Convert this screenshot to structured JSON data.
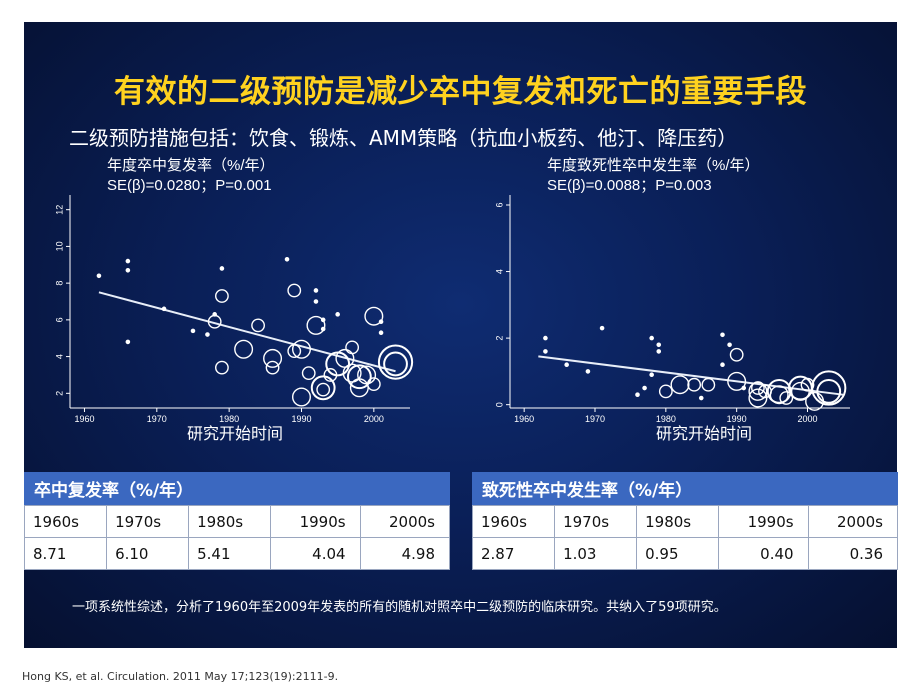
{
  "slide": {
    "title": "有效的二级预防是减少卒中复发和死亡的重要手段",
    "subtitle": "二级预防措施包括：饮食、锻炼、AMM策略（抗血小板药、他汀、降压药）",
    "note": "一项系统性综述，分析了1960年至2009年发表的所有的随机对照卒中二级预防的临床研究。共纳入了59项研究。",
    "citation": "Hong KS, et al. Circulation. 2011 May 17;123(19):2111-9."
  },
  "colors": {
    "title": "#ffd21f",
    "background": "#0a1f57",
    "table_header": "#3b68c0",
    "marker": "#ffffff"
  },
  "chart_data": [
    {
      "type": "scatter",
      "title": "年度卒中复发率（%/年）",
      "subtitle": "SE(β)=0.0280；P=0.001",
      "xlabel": "研究开始时间",
      "xlim": [
        1958,
        2005
      ],
      "ylim": [
        1.2,
        12.8
      ],
      "xticks": [
        "1960",
        "1970",
        "1980",
        "1990",
        "2000"
      ],
      "yticks": [
        "2",
        "4",
        "6",
        "8",
        "10",
        "12"
      ],
      "fit_line": {
        "x": [
          1962,
          2003
        ],
        "y": [
          7.5,
          3.2
        ]
      },
      "points": [
        {
          "x": 1962,
          "y": 8.4,
          "w": 1
        },
        {
          "x": 1966,
          "y": 9.2,
          "w": 1
        },
        {
          "x": 1966,
          "y": 8.7,
          "w": 1
        },
        {
          "x": 1966,
          "y": 4.8,
          "w": 1
        },
        {
          "x": 1971,
          "y": 6.6,
          "w": 1
        },
        {
          "x": 1975,
          "y": 5.4,
          "w": 1
        },
        {
          "x": 1977,
          "y": 5.2,
          "w": 1
        },
        {
          "x": 1978,
          "y": 6.3,
          "w": 1
        },
        {
          "x": 1978,
          "y": 5.9,
          "w": 2
        },
        {
          "x": 1979,
          "y": 8.8,
          "w": 1
        },
        {
          "x": 1979,
          "y": 7.3,
          "w": 2
        },
        {
          "x": 1979,
          "y": 3.4,
          "w": 2
        },
        {
          "x": 1982,
          "y": 4.4,
          "w": 3
        },
        {
          "x": 1984,
          "y": 5.7,
          "w": 2
        },
        {
          "x": 1986,
          "y": 3.9,
          "w": 3
        },
        {
          "x": 1986,
          "y": 3.4,
          "w": 2
        },
        {
          "x": 1988,
          "y": 9.3,
          "w": 1
        },
        {
          "x": 1989,
          "y": 7.6,
          "w": 2
        },
        {
          "x": 1989,
          "y": 4.3,
          "w": 2
        },
        {
          "x": 1990,
          "y": 4.4,
          "w": 3
        },
        {
          "x": 1991,
          "y": 3.1,
          "w": 2
        },
        {
          "x": 1990,
          "y": 1.8,
          "w": 3
        },
        {
          "x": 1992,
          "y": 7.6,
          "w": 1
        },
        {
          "x": 1992,
          "y": 7.0,
          "w": 1
        },
        {
          "x": 1992,
          "y": 5.7,
          "w": 3
        },
        {
          "x": 1993,
          "y": 5.5,
          "w": 1
        },
        {
          "x": 1993,
          "y": 6.0,
          "w": 1
        },
        {
          "x": 1994,
          "y": 3.0,
          "w": 2
        },
        {
          "x": 1993,
          "y": 2.3,
          "w": 4
        },
        {
          "x": 1993,
          "y": 2.2,
          "w": 2
        },
        {
          "x": 1995,
          "y": 6.3,
          "w": 1
        },
        {
          "x": 1995,
          "y": 3.6,
          "w": 4
        },
        {
          "x": 1996,
          "y": 3.9,
          "w": 3
        },
        {
          "x": 1997,
          "y": 4.5,
          "w": 2
        },
        {
          "x": 1997,
          "y": 3.1,
          "w": 3
        },
        {
          "x": 1998,
          "y": 2.9,
          "w": 4
        },
        {
          "x": 1998,
          "y": 2.3,
          "w": 3
        },
        {
          "x": 1999,
          "y": 3.0,
          "w": 3
        },
        {
          "x": 2000,
          "y": 2.5,
          "w": 2
        },
        {
          "x": 2000,
          "y": 6.2,
          "w": 3
        },
        {
          "x": 2001,
          "y": 5.9,
          "w": 1
        },
        {
          "x": 2001,
          "y": 5.3,
          "w": 1
        },
        {
          "x": 2003,
          "y": 3.7,
          "w": 6
        },
        {
          "x": 2003,
          "y": 3.6,
          "w": 4
        }
      ]
    },
    {
      "type": "scatter",
      "title": "年度致死性卒中发生率（%/年）",
      "subtitle": "SE(β)=0.0088；P=0.003",
      "xlabel": "研究开始时间",
      "xlim": [
        1958,
        2006
      ],
      "ylim": [
        -0.1,
        6.3
      ],
      "xticks": [
        "1960",
        "1970",
        "1980",
        "1990",
        "2000"
      ],
      "yticks": [
        "0",
        "2",
        "4",
        "6"
      ],
      "fit_line": {
        "x": [
          1962,
          2005
        ],
        "y": [
          1.45,
          0.3
        ]
      },
      "points": [
        {
          "x": 1963,
          "y": 2.0,
          "w": 1
        },
        {
          "x": 1963,
          "y": 1.6,
          "w": 1
        },
        {
          "x": 1966,
          "y": 1.2,
          "w": 1
        },
        {
          "x": 1969,
          "y": 1.0,
          "w": 1
        },
        {
          "x": 1971,
          "y": 2.3,
          "w": 1
        },
        {
          "x": 1976,
          "y": 0.3,
          "w": 1
        },
        {
          "x": 1977,
          "y": 0.5,
          "w": 1
        },
        {
          "x": 1978,
          "y": 2.0,
          "w": 1
        },
        {
          "x": 1978,
          "y": 0.9,
          "w": 1
        },
        {
          "x": 1979,
          "y": 1.6,
          "w": 1
        },
        {
          "x": 1979,
          "y": 1.8,
          "w": 1
        },
        {
          "x": 1980,
          "y": 0.4,
          "w": 2
        },
        {
          "x": 1982,
          "y": 0.6,
          "w": 3
        },
        {
          "x": 1984,
          "y": 0.6,
          "w": 2
        },
        {
          "x": 1985,
          "y": 0.2,
          "w": 1
        },
        {
          "x": 1986,
          "y": 0.6,
          "w": 2
        },
        {
          "x": 1988,
          "y": 1.2,
          "w": 1
        },
        {
          "x": 1988,
          "y": 2.1,
          "w": 1
        },
        {
          "x": 1989,
          "y": 1.8,
          "w": 1
        },
        {
          "x": 1990,
          "y": 1.5,
          "w": 2
        },
        {
          "x": 1990,
          "y": 0.7,
          "w": 3
        },
        {
          "x": 1991,
          "y": 0.5,
          "w": 1
        },
        {
          "x": 1993,
          "y": 0.4,
          "w": 3
        },
        {
          "x": 1993,
          "y": 0.2,
          "w": 3
        },
        {
          "x": 1993,
          "y": 0.5,
          "w": 2
        },
        {
          "x": 1994,
          "y": 0.4,
          "w": 2
        },
        {
          "x": 1996,
          "y": 0.4,
          "w": 4
        },
        {
          "x": 1996,
          "y": 0.3,
          "w": 3
        },
        {
          "x": 1997,
          "y": 0.2,
          "w": 2
        },
        {
          "x": 1999,
          "y": 0.5,
          "w": 4
        },
        {
          "x": 1999,
          "y": 0.4,
          "w": 3
        },
        {
          "x": 2000,
          "y": 0.6,
          "w": 2
        },
        {
          "x": 2001,
          "y": 0.1,
          "w": 3
        },
        {
          "x": 2003,
          "y": 0.5,
          "w": 6
        },
        {
          "x": 2003,
          "y": 0.4,
          "w": 4
        }
      ]
    }
  ],
  "tables": [
    {
      "header": "卒中复发率（%/年）",
      "decades": [
        "1960s",
        "1970s",
        "1980s",
        "1990s",
        "2000s"
      ],
      "values": [
        "8.71",
        "6.10",
        "5.41",
        "4.04",
        "4.98"
      ]
    },
    {
      "header": "致死性卒中发生率（%/年）",
      "decades": [
        "1960s",
        "1970s",
        "1980s",
        "1990s",
        "2000s"
      ],
      "values": [
        "2.87",
        "1.03",
        "0.95",
        "0.40",
        "0.36"
      ]
    }
  ]
}
